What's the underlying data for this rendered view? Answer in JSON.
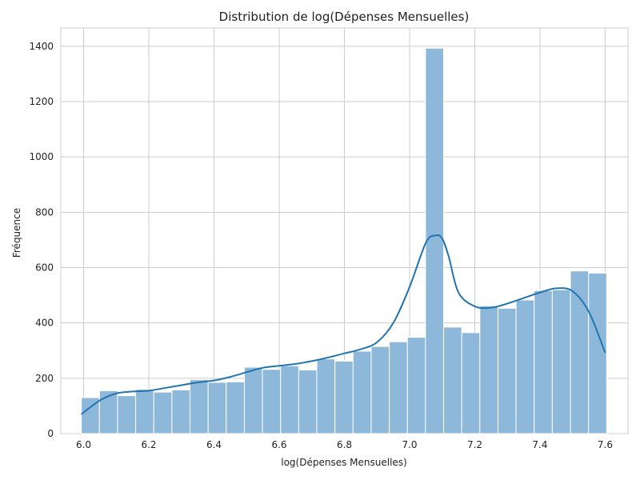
{
  "chart_data": {
    "type": "bar",
    "title": "Distribution de log(Dépenses Mensuelles)",
    "xlabel": "log(Dépenses Mensuelles)",
    "ylabel": "Fréquence",
    "xlim": [
      5.93,
      7.67
    ],
    "ylim": [
      0,
      1466
    ],
    "xticks": [
      6.0,
      6.2,
      6.4,
      6.6,
      6.8,
      7.0,
      7.2,
      7.4,
      7.6
    ],
    "yticks": [
      0,
      200,
      400,
      600,
      800,
      1000,
      1200,
      1400
    ],
    "grid": true,
    "bins": {
      "start": 5.993,
      "width": 0.05557,
      "counts": [
        130,
        155,
        137,
        160,
        150,
        158,
        195,
        185,
        187,
        240,
        232,
        245,
        230,
        270,
        262,
        298,
        315,
        332,
        348,
        1393,
        385,
        365,
        462,
        453,
        483,
        517,
        520,
        588,
        580
      ]
    },
    "kde": {
      "x": [
        5.993,
        6.05,
        6.1,
        6.15,
        6.2,
        6.25,
        6.3,
        6.35,
        6.4,
        6.45,
        6.5,
        6.55,
        6.6,
        6.65,
        6.7,
        6.75,
        6.8,
        6.85,
        6.9,
        6.95,
        7.0,
        7.05,
        7.08,
        7.1,
        7.12,
        7.15,
        7.2,
        7.25,
        7.3,
        7.35,
        7.4,
        7.45,
        7.5,
        7.55,
        7.6
      ],
      "y": [
        70,
        120,
        145,
        152,
        155,
        165,
        175,
        185,
        192,
        205,
        222,
        238,
        245,
        252,
        262,
        275,
        290,
        305,
        330,
        400,
        530,
        690,
        716,
        705,
        640,
        510,
        460,
        455,
        470,
        490,
        510,
        525,
        515,
        440,
        292
      ]
    },
    "colors": {
      "bar_fill": "#8db8da",
      "bar_edge": "#ffffff",
      "kde_line": "#2474b0",
      "grid": "#cccccc"
    }
  }
}
